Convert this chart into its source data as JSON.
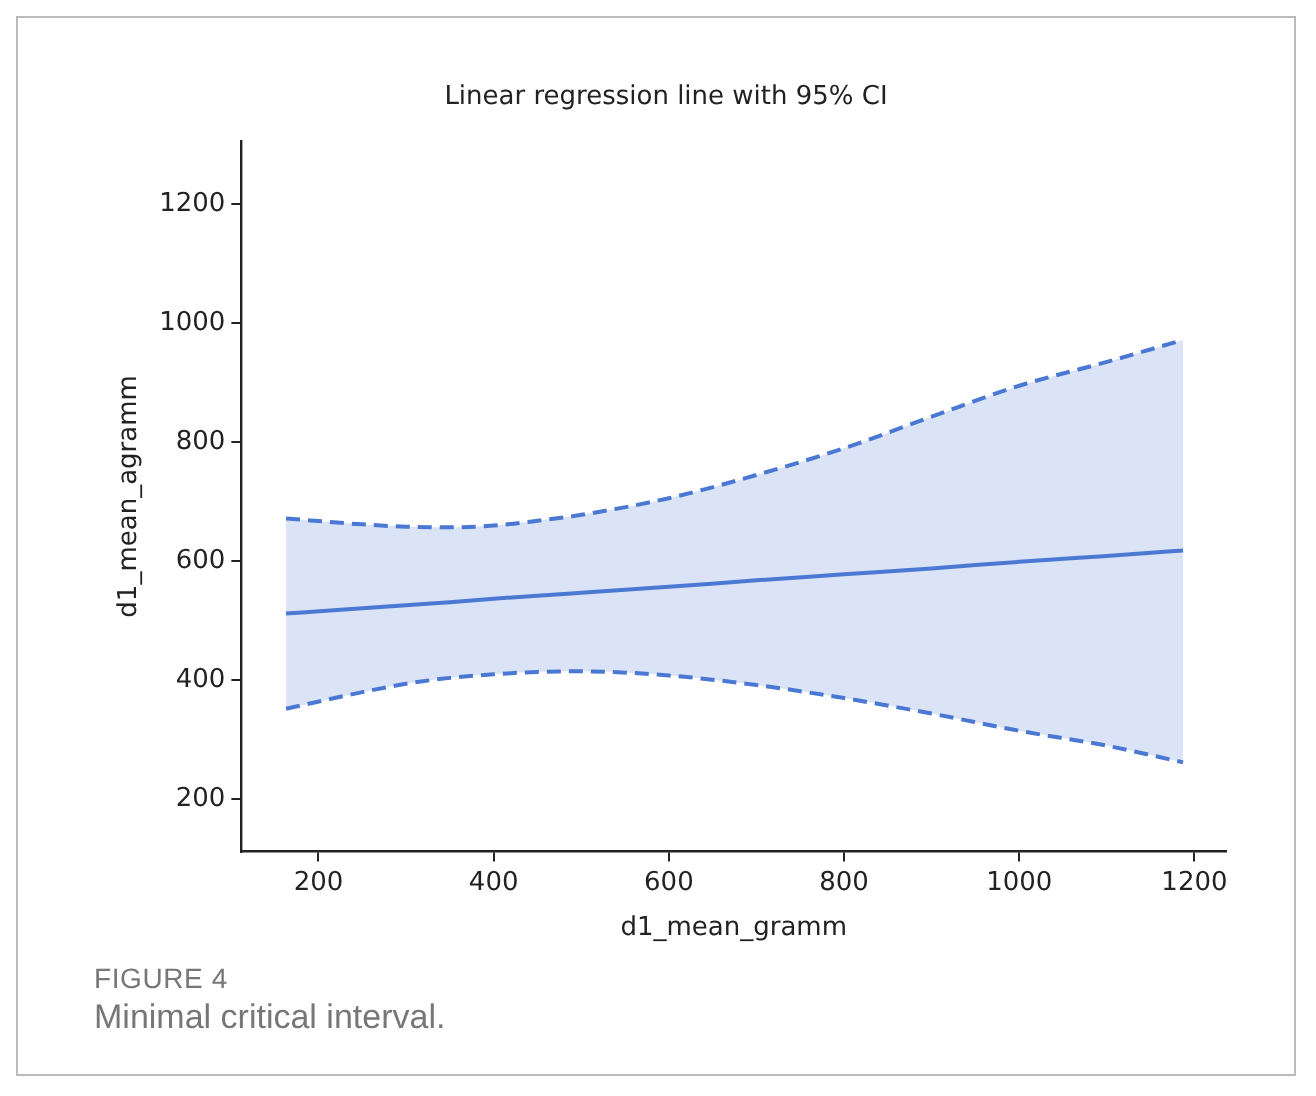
{
  "chart_data": {
    "type": "line",
    "title": "Linear regression line with 95% CI",
    "xlabel": "d1_mean_gramm",
    "ylabel": "d1_mean_agramm",
    "xlim": [
      112,
      1236
    ],
    "ylim": [
      112,
      1306
    ],
    "xticks": [
      200,
      400,
      600,
      800,
      1000,
      1200
    ],
    "yticks": [
      200,
      400,
      600,
      800,
      1000,
      1200
    ],
    "series": [
      {
        "color": "#4a78d4",
        "line_style": "solid",
        "marker": "none",
        "x": [
          163,
          250,
          300,
          350,
          400,
          450,
          500,
          600,
          700,
          800,
          900,
          1000,
          1100,
          1187
        ],
        "values": [
          512,
          521,
          526,
          531,
          537,
          542,
          547,
          557,
          568,
          578,
          588,
          599,
          609,
          618
        ],
        "upper": [
          672,
          662,
          658,
          657,
          660,
          668,
          678,
          706,
          745,
          790,
          843,
          895,
          935,
          972
        ],
        "lower": [
          352,
          380,
          394,
          404,
          410,
          414,
          415,
          408,
          392,
          370,
          344,
          315,
          290,
          262
        ]
      },
      {
        "color": "#4a78d4",
        "line_style": "dashed",
        "marker": "none",
        "x": [
          163,
          250,
          300,
          350,
          400,
          450,
          500,
          600,
          700,
          800,
          900,
          1000,
          1100,
          1187
        ],
        "values": [
          672,
          662,
          658,
          657,
          660,
          668,
          678,
          706,
          745,
          790,
          843,
          895,
          935,
          972
        ]
      },
      {
        "color": "#4a78d4",
        "line_style": "dashed",
        "marker": "none",
        "x": [
          163,
          250,
          300,
          350,
          400,
          450,
          500,
          600,
          700,
          800,
          900,
          1000,
          1100,
          1187
        ],
        "values": [
          352,
          380,
          394,
          404,
          410,
          414,
          415,
          408,
          392,
          370,
          344,
          315,
          290,
          262
        ]
      }
    ],
    "annotations": [
      "FIGURE 4",
      "Minimal critical interval."
    ]
  }
}
